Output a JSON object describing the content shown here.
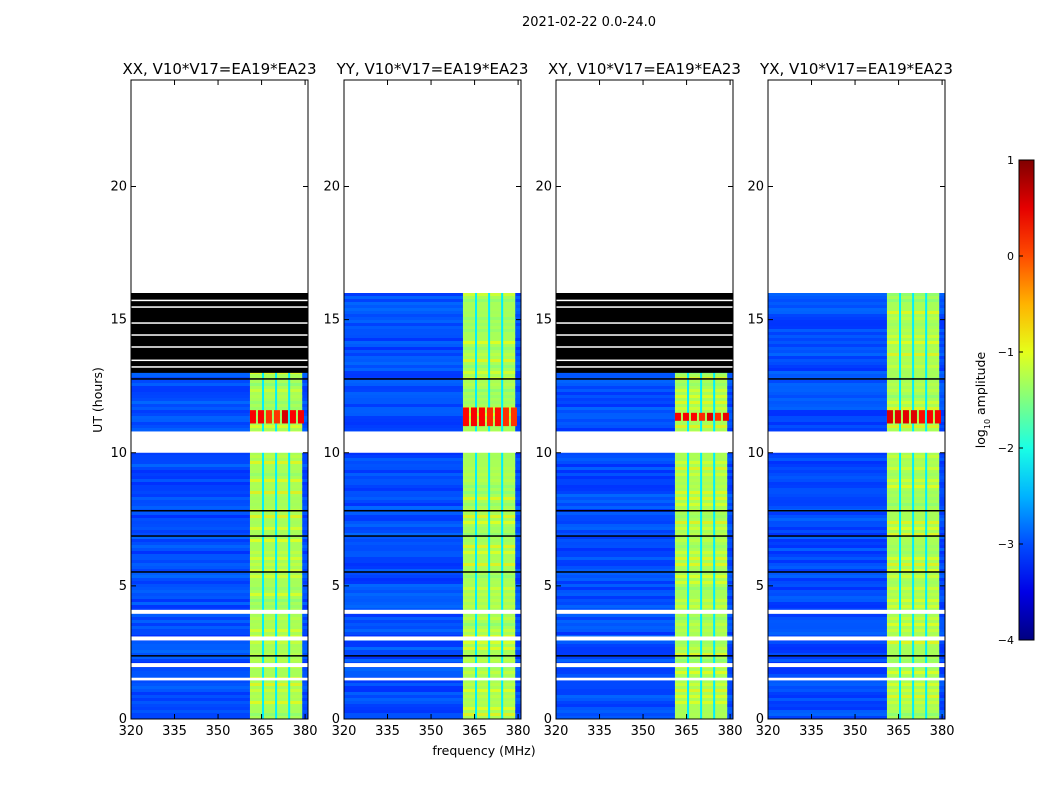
{
  "figure": {
    "suptitle": "2021-02-22 0.0-24.0"
  },
  "chart_data": {
    "type": "heatmap",
    "title": "2021-02-22 0.0-24.0",
    "xlabel": "frequency (MHz)",
    "ylabel": "UT (hours)",
    "xlim": [
      320,
      381
    ],
    "ylim": [
      0,
      24
    ],
    "xticks": [
      320,
      335,
      350,
      365,
      380
    ],
    "yticks": [
      0,
      5,
      10,
      15,
      20
    ],
    "colorbar": {
      "label": "log10 amplitude",
      "label_main": "log",
      "label_sub": "10",
      "label_rest": " amplitude",
      "range": [
        -4,
        1
      ],
      "ticks": [
        1,
        0,
        -1,
        -2,
        -3,
        -4
      ],
      "colormap": "jet"
    },
    "data_coverage_hours": [
      0,
      16
    ],
    "bright_band_mhz": [
      361,
      379
    ],
    "band_stripes_mhz": [
      365.5,
      370,
      374.5
    ],
    "background_level": -3.0,
    "band_level": -1.3,
    "peak_level": 0.6,
    "white_gaps_hours": [
      [
        1.45,
        1.55
      ],
      [
        1.95,
        2.1
      ],
      [
        2.95,
        3.1
      ],
      [
        3.95,
        4.1
      ],
      [
        10.0,
        10.8
      ]
    ],
    "black_lines_hours": [
      2.4,
      5.55,
      6.9,
      7.85,
      12.8
    ],
    "panels": [
      {
        "name": "xx",
        "title": "XX, V10*V17=EA19*EA23",
        "flagged_hours": [
          13.0,
          16.0
        ],
        "flagged_lines_hours": [
          13.25,
          13.5,
          14.0,
          14.45,
          14.9,
          15.5,
          15.75
        ],
        "peak_hours": [
          11.1,
          11.6
        ]
      },
      {
        "name": "yy",
        "title": "YY, V10*V17=EA19*EA23",
        "flagged_hours": null,
        "flagged_lines_hours": [],
        "peak_hours": [
          11.0,
          11.7
        ]
      },
      {
        "name": "xy",
        "title": "XY, V10*V17=EA19*EA23",
        "flagged_hours": [
          13.0,
          16.0
        ],
        "flagged_lines_hours": [
          13.25,
          13.5,
          14.0,
          14.45,
          14.9,
          15.5,
          15.75
        ],
        "peak_hours": [
          11.2,
          11.5
        ]
      },
      {
        "name": "yx",
        "title": "YX, V10*V17=EA19*EA23",
        "flagged_hours": null,
        "flagged_lines_hours": [],
        "peak_hours": [
          11.1,
          11.6
        ]
      }
    ]
  }
}
